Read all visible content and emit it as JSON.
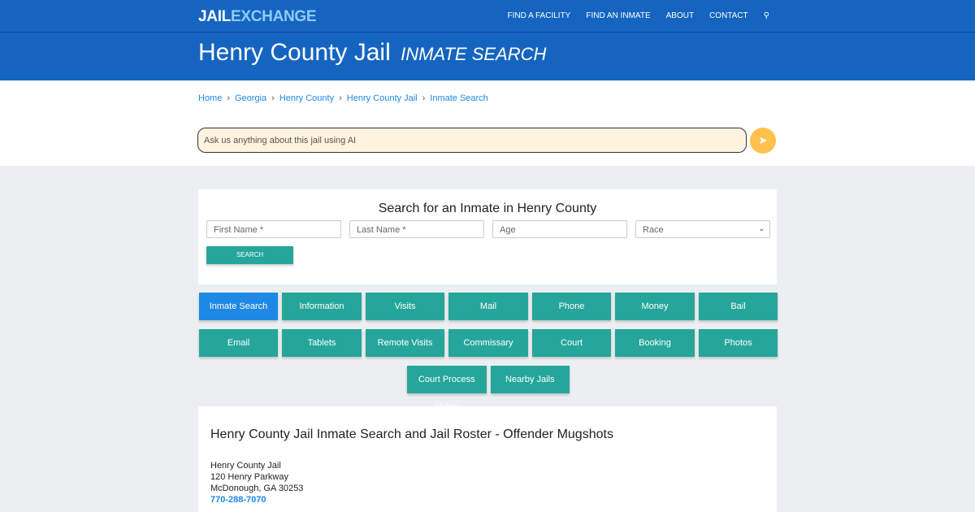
{
  "nav": {
    "logo_a": "JAIL",
    "logo_b": "EXCHANGE",
    "items": [
      "FIND A FACILITY",
      "FIND AN INMATE",
      "ABOUT",
      "CONTACT"
    ]
  },
  "hero": {
    "title": "Henry County Jail",
    "subtitle": "INMATE SEARCH"
  },
  "breadcrumb": [
    "Home",
    "Georgia",
    "Henry County",
    "Henry County Jail",
    "Inmate Search"
  ],
  "ai": {
    "placeholder": "Ask us anything about this jail using AI"
  },
  "search": {
    "title": "Search for an Inmate in Henry County",
    "first": "First Name *",
    "last": "Last Name *",
    "age": "Age",
    "race": "Race",
    "button": "SEARCH"
  },
  "buttons": [
    "Inmate Search",
    "Information",
    "Visits",
    "Mail",
    "Phone",
    "Money",
    "Bail",
    "Email",
    "Tablets",
    "Remote Visits",
    "Commissary",
    "Court",
    "Booking",
    "Photos",
    "Court Process Video",
    "Nearby Jails"
  ],
  "content": {
    "heading": "Henry County Jail Inmate Search and Jail Roster - Offender Mugshots",
    "name": "Henry County Jail",
    "street": "120 Henry Parkway",
    "city": "McDonough, GA 30253",
    "phone": "770-288-7070"
  }
}
